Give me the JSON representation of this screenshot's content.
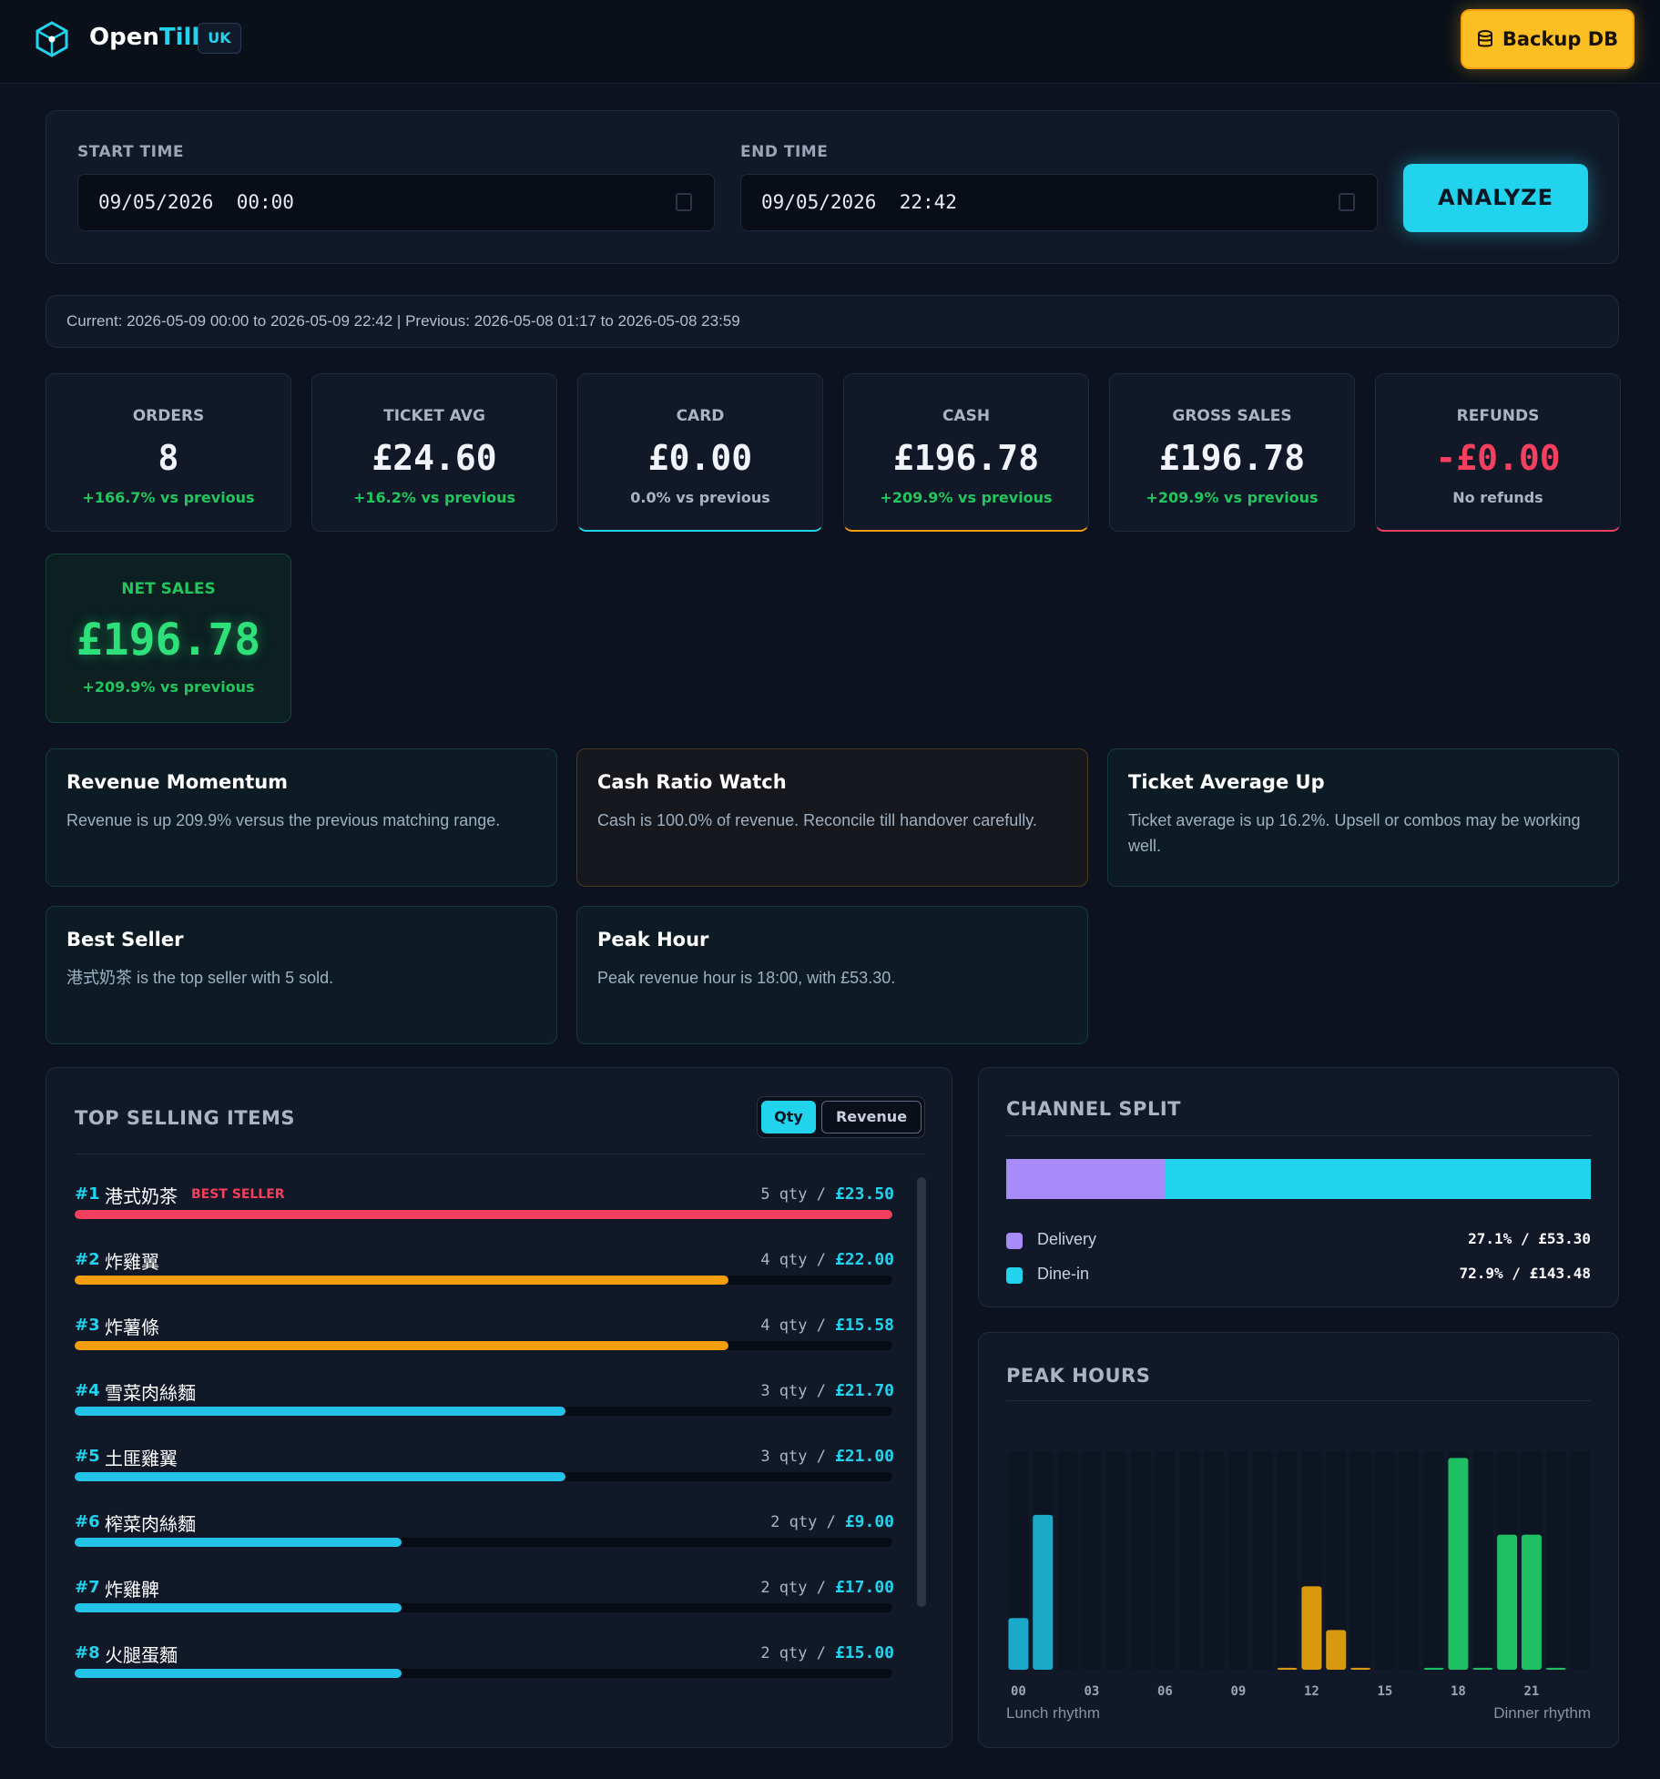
{
  "header": {
    "brand_open": "Open",
    "brand_till": "Till",
    "region": "UK",
    "backup_label": "Backup DB",
    "icons": {
      "logo": "hex-cube-logo",
      "backup": "database-icon"
    }
  },
  "filters": {
    "start_label": "START TIME",
    "start_value": "09/05/2026  00:00",
    "end_label": "END TIME",
    "end_value": "09/05/2026  22:42",
    "analyze_label": "ANALYZE"
  },
  "range_text": "Current: 2026-05-09 00:00 to 2026-05-09 22:42 | Previous: 2026-05-08 01:17 to 2026-05-08 23:59",
  "kpis": [
    {
      "label": "ORDERS",
      "value": "8",
      "delta": "+166.7% vs previous",
      "tone": "green"
    },
    {
      "label": "TICKET AVG",
      "value": "£24.60",
      "delta": "+16.2% vs previous",
      "tone": "green"
    },
    {
      "label": "CARD",
      "value": "£0.00",
      "delta": "0.0% vs previous",
      "tone": "grey",
      "accent": "#22d3ee"
    },
    {
      "label": "CASH",
      "value": "£196.78",
      "delta": "+209.9% vs previous",
      "tone": "green",
      "accent": "#f59e0b"
    },
    {
      "label": "GROSS SALES",
      "value": "£196.78",
      "delta": "+209.9% vs previous",
      "tone": "green"
    },
    {
      "label": "REFUNDS",
      "value": "-£0.00",
      "delta": "No refunds",
      "tone": "grey",
      "accent": "#f43f5e"
    }
  ],
  "net_sales": {
    "label": "NET SALES",
    "value": "£196.78",
    "delta": "+209.9% vs previous"
  },
  "insights": [
    {
      "title": "Revenue Momentum",
      "text": "Revenue is up 209.9% versus the previous matching range."
    },
    {
      "title": "Cash Ratio Watch",
      "text": "Cash is 100.0% of revenue. Reconcile till handover carefully."
    },
    {
      "title": "Ticket Average Up",
      "text": "Ticket average is up 16.2%. Upsell or combos may be working well."
    },
    {
      "title": "Best Seller",
      "text": "港式奶茶 is the top seller with 5 sold."
    },
    {
      "title": "Peak Hour",
      "text": "Peak revenue hour is 18:00, with £53.30."
    }
  ],
  "top_selling": {
    "title": "TOP SELLING ITEMS",
    "toggle_qty": "Qty",
    "toggle_revenue": "Revenue",
    "best_tag": "BEST SELLER",
    "items": [
      {
        "rank": "#1",
        "name": "港式奶茶",
        "qty": "5 qty /",
        "revenue": "£23.50",
        "fraction": 1.0,
        "color": "#f43f5e"
      },
      {
        "rank": "#2",
        "name": "炸雞翼",
        "qty": "4 qty /",
        "revenue": "£22.00",
        "fraction": 0.8,
        "color": "#f59e0b"
      },
      {
        "rank": "#3",
        "name": "炸薯條",
        "qty": "4 qty /",
        "revenue": "£15.58",
        "fraction": 0.8,
        "color": "#f59e0b"
      },
      {
        "rank": "#4",
        "name": "雪菜肉絲麵",
        "qty": "3 qty /",
        "revenue": "£21.70",
        "fraction": 0.6,
        "color": "#22c3e6"
      },
      {
        "rank": "#5",
        "name": "土匪雞翼",
        "qty": "3 qty /",
        "revenue": "£21.00",
        "fraction": 0.6,
        "color": "#22c3e6"
      },
      {
        "rank": "#6",
        "name": "榨菜肉絲麵",
        "qty": "2 qty /",
        "revenue": "£9.00",
        "fraction": 0.4,
        "color": "#22c3e6"
      },
      {
        "rank": "#7",
        "name": "炸雞髀",
        "qty": "2 qty /",
        "revenue": "£17.00",
        "fraction": 0.4,
        "color": "#22c3e6"
      },
      {
        "rank": "#8",
        "name": "火腿蛋麵",
        "qty": "2 qty /",
        "revenue": "£15.00",
        "fraction": 0.4,
        "color": "#22c3e6"
      }
    ]
  },
  "channel_split": {
    "title": "CHANNEL SPLIT",
    "channels": [
      {
        "name": "Delivery",
        "value": "27.1% / £53.30",
        "fraction": 0.271,
        "color": "#a78bfa"
      },
      {
        "name": "Dine-in",
        "value": "72.9% / £143.48",
        "fraction": 0.729,
        "color": "#22d3ee"
      }
    ]
  },
  "peak_hours": {
    "title": "PEAK HOURS",
    "left_note": "Lunch rhythm",
    "right_note": "Dinner rhythm"
  },
  "chart_data": {
    "type": "bar",
    "title": "PEAK HOURS",
    "categories": [
      "00",
      "01",
      "02",
      "03",
      "04",
      "05",
      "06",
      "07",
      "08",
      "09",
      "10",
      "11",
      "12",
      "13",
      "14",
      "15",
      "16",
      "17",
      "18",
      "19",
      "20",
      "21",
      "22",
      "23"
    ],
    "tick_labels": [
      "00",
      "03",
      "06",
      "09",
      "12",
      "15",
      "18",
      "21"
    ],
    "values": [
      13,
      39,
      0,
      0,
      0,
      0,
      0,
      0,
      0,
      0,
      0,
      0.5,
      21,
      10,
      0.5,
      0,
      0,
      0.5,
      53.3,
      0.5,
      34,
      34,
      0.5,
      0
    ],
    "colors_by_period": {
      "early": "#1aa9c9",
      "lunch": "#d9990f",
      "dinner": "#1fbf63"
    },
    "ylim": [
      0,
      55
    ],
    "grid": true
  }
}
